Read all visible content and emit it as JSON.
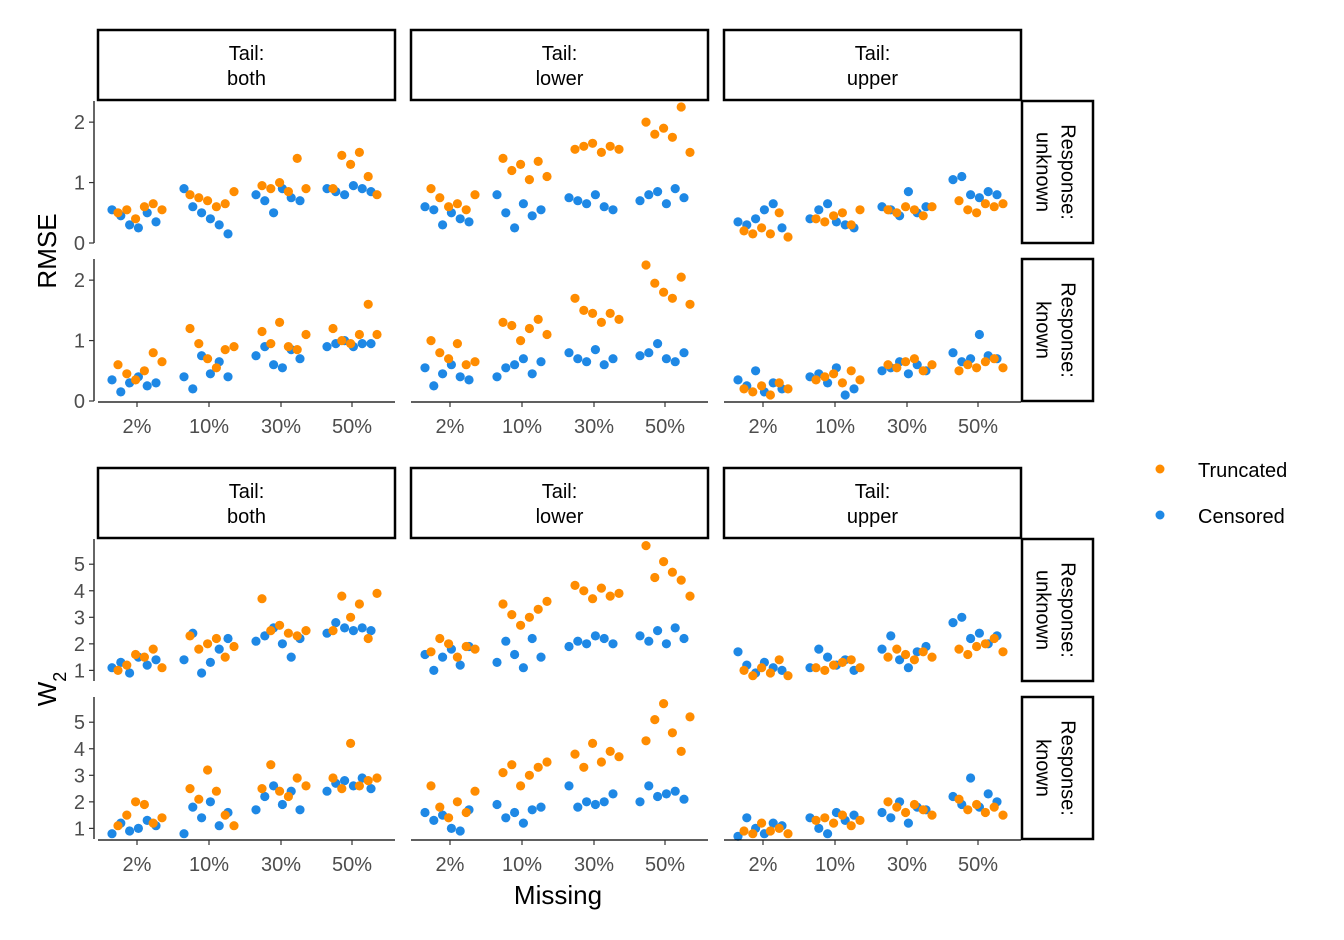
{
  "chart_data": {
    "type": "scatter",
    "xlabel": "Missing",
    "x_categories": [
      "2%",
      "10%",
      "30%",
      "50%"
    ],
    "facet_columns": [
      {
        "line1": "Tail:",
        "line2": "both"
      },
      {
        "line1": "Tail:",
        "line2": "lower"
      },
      {
        "line1": "Tail:",
        "line2": "upper"
      }
    ],
    "facet_rows": [
      {
        "line1": "Response:",
        "line2": "unknown"
      },
      {
        "line1": "Response:",
        "line2": "known"
      }
    ],
    "legend": {
      "position": "right",
      "entries": [
        {
          "name": "Truncated",
          "color": "#FF8C00"
        },
        {
          "name": "Censored",
          "color": "#1E88E5"
        }
      ]
    },
    "metrics": [
      {
        "ylabel": "RMSE",
        "ylim": [
          0,
          2.35
        ],
        "yticks": [
          0,
          1,
          2
        ],
        "panels": {
          "both_unknown": {
            "Truncated": [
              [
                0.5,
                0.55,
                0.4,
                0.6,
                0.65,
                0.55
              ],
              [
                0.8,
                0.75,
                0.7,
                0.6,
                0.65,
                0.85
              ],
              [
                0.95,
                0.9,
                1.0,
                0.85,
                1.4,
                0.9
              ],
              [
                0.9,
                1.45,
                1.3,
                1.5,
                1.1,
                0.8
              ]
            ],
            "Censored": [
              [
                0.55,
                0.45,
                0.3,
                0.25,
                0.5,
                0.35
              ],
              [
                0.9,
                0.6,
                0.5,
                0.4,
                0.3,
                0.15
              ],
              [
                0.8,
                0.7,
                0.5,
                0.9,
                0.75,
                0.7
              ],
              [
                0.9,
                0.85,
                0.8,
                0.95,
                0.9,
                0.85
              ]
            ]
          },
          "lower_unknown": {
            "Truncated": [
              [
                0.9,
                0.75,
                0.6,
                0.65,
                0.55,
                0.8
              ],
              [
                1.4,
                1.2,
                1.3,
                1.05,
                1.35,
                1.1
              ],
              [
                1.55,
                1.6,
                1.65,
                1.5,
                1.6,
                1.55
              ],
              [
                2.0,
                1.8,
                1.9,
                1.75,
                2.25,
                1.5
              ]
            ],
            "Censored": [
              [
                0.6,
                0.55,
                0.3,
                0.5,
                0.4,
                0.35
              ],
              [
                0.8,
                0.5,
                0.25,
                0.65,
                0.45,
                0.55
              ],
              [
                0.75,
                0.7,
                0.65,
                0.8,
                0.6,
                0.55
              ],
              [
                0.7,
                0.8,
                0.85,
                0.65,
                0.9,
                0.75
              ]
            ]
          },
          "upper_unknown": {
            "Truncated": [
              [
                0.2,
                0.15,
                0.25,
                0.15,
                0.5,
                0.1
              ],
              [
                0.4,
                0.35,
                0.45,
                0.5,
                0.3,
                0.55
              ],
              [
                0.55,
                0.5,
                0.6,
                0.55,
                0.45,
                0.6
              ],
              [
                0.7,
                0.55,
                0.5,
                0.65,
                0.6,
                0.65
              ]
            ],
            "Censored": [
              [
                0.35,
                0.3,
                0.4,
                0.55,
                0.65,
                0.25
              ],
              [
                0.4,
                0.55,
                0.65,
                0.35,
                0.3,
                0.25
              ],
              [
                0.6,
                0.55,
                0.45,
                0.85,
                0.5,
                0.6
              ],
              [
                1.05,
                1.1,
                0.8,
                0.75,
                0.85,
                0.8
              ]
            ]
          },
          "both_known": {
            "Truncated": [
              [
                0.6,
                0.45,
                0.35,
                0.5,
                0.8,
                0.65
              ],
              [
                1.2,
                0.95,
                0.7,
                0.55,
                0.85,
                0.9
              ],
              [
                1.15,
                0.95,
                1.3,
                0.9,
                0.85,
                1.1
              ],
              [
                1.2,
                1.0,
                0.95,
                1.1,
                1.6,
                1.1
              ]
            ],
            "Censored": [
              [
                0.35,
                0.15,
                0.3,
                0.4,
                0.25,
                0.3
              ],
              [
                0.4,
                0.2,
                0.75,
                0.45,
                0.65,
                0.4
              ],
              [
                0.75,
                0.9,
                0.6,
                0.55,
                0.85,
                0.7
              ],
              [
                0.9,
                0.95,
                1.0,
                0.9,
                0.95,
                0.95
              ]
            ]
          },
          "lower_known": {
            "Truncated": [
              [
                1.0,
                0.8,
                0.7,
                0.95,
                0.6,
                0.65
              ],
              [
                1.3,
                1.25,
                1.0,
                1.2,
                1.35,
                1.1
              ],
              [
                1.7,
                1.5,
                1.45,
                1.3,
                1.45,
                1.35
              ],
              [
                2.25,
                1.95,
                1.8,
                1.7,
                2.05,
                1.6
              ]
            ],
            "Censored": [
              [
                0.55,
                0.25,
                0.45,
                0.6,
                0.4,
                0.35
              ],
              [
                0.4,
                0.55,
                0.6,
                0.7,
                0.45,
                0.65
              ],
              [
                0.8,
                0.7,
                0.65,
                0.85,
                0.6,
                0.7
              ],
              [
                0.75,
                0.8,
                0.95,
                0.7,
                0.65,
                0.8
              ]
            ]
          },
          "upper_known": {
            "Truncated": [
              [
                0.2,
                0.15,
                0.25,
                0.1,
                0.3,
                0.2
              ],
              [
                0.35,
                0.4,
                0.45,
                0.3,
                0.5,
                0.35
              ],
              [
                0.6,
                0.55,
                0.65,
                0.7,
                0.5,
                0.6
              ],
              [
                0.5,
                0.6,
                0.55,
                0.65,
                0.7,
                0.55
              ]
            ],
            "Censored": [
              [
                0.35,
                0.25,
                0.5,
                0.15,
                0.3,
                0.2
              ],
              [
                0.4,
                0.45,
                0.3,
                0.55,
                0.1,
                0.2
              ],
              [
                0.5,
                0.55,
                0.65,
                0.45,
                0.6,
                0.5
              ],
              [
                0.8,
                0.65,
                0.7,
                1.1,
                0.75,
                0.7
              ]
            ]
          }
        }
      },
      {
        "ylabel": "W",
        "ylabel_sub": "2",
        "ylim": [
          0.6,
          5.95
        ],
        "yticks": [
          1,
          2,
          3,
          4,
          5
        ],
        "panels": {
          "both_unknown": {
            "Truncated": [
              [
                1.0,
                1.2,
                1.6,
                1.5,
                1.8,
                1.1
              ],
              [
                2.3,
                1.8,
                2.0,
                2.2,
                1.5,
                1.9
              ],
              [
                3.7,
                2.5,
                2.7,
                2.4,
                2.3,
                2.5
              ],
              [
                2.5,
                3.8,
                3.0,
                3.5,
                2.2,
                3.9
              ]
            ],
            "Censored": [
              [
                1.1,
                1.3,
                0.9,
                1.5,
                1.2,
                1.4
              ],
              [
                1.4,
                2.4,
                0.9,
                1.3,
                1.8,
                2.2
              ],
              [
                2.1,
                2.3,
                2.6,
                2.0,
                1.5,
                2.2
              ],
              [
                2.4,
                2.8,
                2.6,
                2.5,
                2.6,
                2.5
              ]
            ]
          },
          "lower_unknown": {
            "Truncated": [
              [
                1.7,
                2.2,
                2.0,
                1.5,
                1.9,
                1.8
              ],
              [
                3.5,
                3.1,
                2.7,
                3.0,
                3.3,
                3.6
              ],
              [
                4.2,
                4.0,
                3.7,
                4.1,
                3.8,
                3.9
              ],
              [
                5.7,
                4.5,
                5.1,
                4.7,
                4.4,
                3.8
              ]
            ],
            "Censored": [
              [
                1.6,
                1.0,
                1.5,
                1.8,
                1.2,
                1.9
              ],
              [
                1.3,
                2.1,
                1.6,
                1.1,
                2.2,
                1.5
              ],
              [
                1.9,
                2.1,
                2.0,
                2.3,
                2.2,
                2.0
              ],
              [
                2.3,
                2.1,
                2.5,
                2.0,
                2.6,
                2.2
              ]
            ]
          },
          "upper_unknown": {
            "Truncated": [
              [
                1.0,
                0.8,
                1.1,
                0.9,
                1.4,
                0.8
              ],
              [
                1.1,
                1.0,
                1.2,
                1.3,
                1.4,
                1.1
              ],
              [
                1.5,
                1.8,
                1.6,
                1.4,
                1.7,
                1.5
              ],
              [
                1.8,
                1.6,
                1.9,
                2.0,
                2.2,
                1.7
              ]
            ],
            "Censored": [
              [
                1.7,
                1.2,
                0.9,
                1.3,
                1.1,
                1.0
              ],
              [
                1.1,
                1.8,
                1.5,
                1.2,
                1.4,
                1.0
              ],
              [
                1.8,
                2.3,
                1.4,
                1.1,
                1.7,
                1.9
              ],
              [
                2.8,
                3.0,
                2.2,
                2.4,
                2.0,
                2.3
              ]
            ]
          },
          "both_known": {
            "Truncated": [
              [
                1.1,
                1.5,
                2.0,
                1.9,
                1.2,
                1.4
              ],
              [
                2.5,
                2.1,
                3.2,
                2.4,
                1.5,
                1.1
              ],
              [
                2.5,
                3.4,
                2.4,
                2.2,
                2.9,
                2.6
              ],
              [
                2.9,
                2.5,
                4.2,
                2.6,
                2.8,
                2.9
              ]
            ],
            "Censored": [
              [
                0.8,
                1.2,
                0.9,
                1.0,
                1.3,
                1.1
              ],
              [
                0.8,
                1.8,
                1.4,
                2.0,
                1.1,
                1.6
              ],
              [
                1.7,
                2.2,
                2.6,
                1.9,
                2.4,
                1.7
              ],
              [
                2.4,
                2.7,
                2.8,
                2.6,
                2.9,
                2.5
              ]
            ]
          },
          "lower_known": {
            "Truncated": [
              [
                2.6,
                1.8,
                1.4,
                2.0,
                1.6,
                2.4
              ],
              [
                3.1,
                3.4,
                2.6,
                3.0,
                3.3,
                3.5
              ],
              [
                3.8,
                3.3,
                4.2,
                3.5,
                3.9,
                3.7
              ],
              [
                4.3,
                5.1,
                5.7,
                4.6,
                3.9,
                5.2
              ]
            ],
            "Censored": [
              [
                1.6,
                1.3,
                1.5,
                1.0,
                0.9,
                1.7
              ],
              [
                1.9,
                1.4,
                1.6,
                1.2,
                1.7,
                1.8
              ],
              [
                2.6,
                1.8,
                2.0,
                1.9,
                2.0,
                2.3
              ],
              [
                2.0,
                2.6,
                2.2,
                2.3,
                2.4,
                2.1
              ]
            ]
          },
          "upper_known": {
            "Truncated": [
              [
                0.9,
                0.8,
                1.2,
                0.9,
                1.0,
                0.8
              ],
              [
                1.3,
                1.4,
                1.2,
                1.5,
                1.1,
                1.3
              ],
              [
                2.0,
                1.8,
                1.6,
                1.9,
                1.7,
                1.5
              ],
              [
                2.1,
                1.7,
                1.9,
                1.6,
                1.8,
                1.5
              ]
            ],
            "Censored": [
              [
                0.7,
                1.4,
                1.0,
                0.8,
                1.2,
                1.1
              ],
              [
                1.4,
                1.0,
                0.8,
                1.6,
                1.3,
                1.5
              ],
              [
                1.6,
                1.4,
                2.0,
                1.2,
                1.8,
                1.7
              ],
              [
                2.2,
                1.9,
                2.9,
                1.8,
                2.3,
                2.0
              ]
            ]
          }
        }
      }
    ]
  }
}
